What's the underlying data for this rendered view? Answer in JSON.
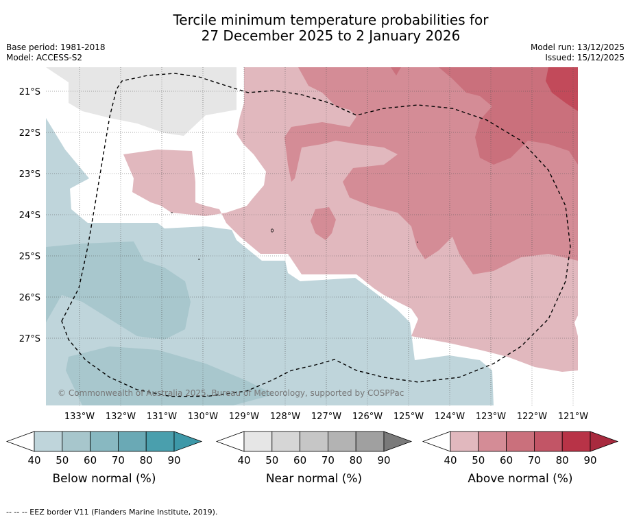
{
  "title": {
    "line1": "Tercile minimum temperature probabilities for",
    "line2": "27 December 2025 to 2 January 2026"
  },
  "meta": {
    "base_period": "Base period: 1981-2018",
    "model": "Model: ACCESS-S2",
    "model_run": "Model run: 13/12/2025",
    "issued": "Issued: 15/12/2025"
  },
  "map": {
    "latitudes": [
      "21°S",
      "22°S",
      "23°S",
      "24°S",
      "25°S",
      "26°S",
      "27°S"
    ],
    "longitudes": [
      "133°W",
      "132°W",
      "131°W",
      "130°W",
      "129°W",
      "128°W",
      "127°W",
      "126°W",
      "125°W",
      "124°W",
      "123°W",
      "122°W",
      "121°W"
    ],
    "copyright": "© Commonwealth of Australia 2025, Bureau of Meteorology, supported by COSPPac"
  },
  "colorbars": [
    {
      "name": "below",
      "label": "Below normal (%)",
      "ticks": [
        "40",
        "50",
        "60",
        "70",
        "80",
        "90"
      ],
      "colors": [
        "#bfd5db",
        "#a7c6cc",
        "#88b8c1",
        "#6aa9b5",
        "#4a9fad"
      ],
      "extend": "#3d98a8"
    },
    {
      "name": "near",
      "label": "Near normal (%)",
      "ticks": [
        "40",
        "50",
        "60",
        "70",
        "80",
        "90"
      ],
      "colors": [
        "#e6e6e6",
        "#d6d6d6",
        "#c6c6c6",
        "#b3b3b3",
        "#a0a0a0"
      ],
      "extend": "#7a7a7a"
    },
    {
      "name": "above",
      "label": "Above normal (%)",
      "ticks": [
        "40",
        "50",
        "60",
        "70",
        "80",
        "90"
      ],
      "colors": [
        "#e1b8be",
        "#d48c96",
        "#ca707c",
        "#c25566",
        "#b83347"
      ],
      "extend": "#a82a3e"
    }
  ],
  "palette": {
    "below_40": "#bfd5db",
    "below_50": "#a8c7cd",
    "near_40": "#e6e6e6",
    "above_40": "#e1b8be",
    "above_50": "#d48c96",
    "above_60": "#ca707c",
    "above_70": "#c24a5a"
  },
  "footer": "--  --  -- EEZ border V11 (Flanders Marine Institute, 2019)."
}
